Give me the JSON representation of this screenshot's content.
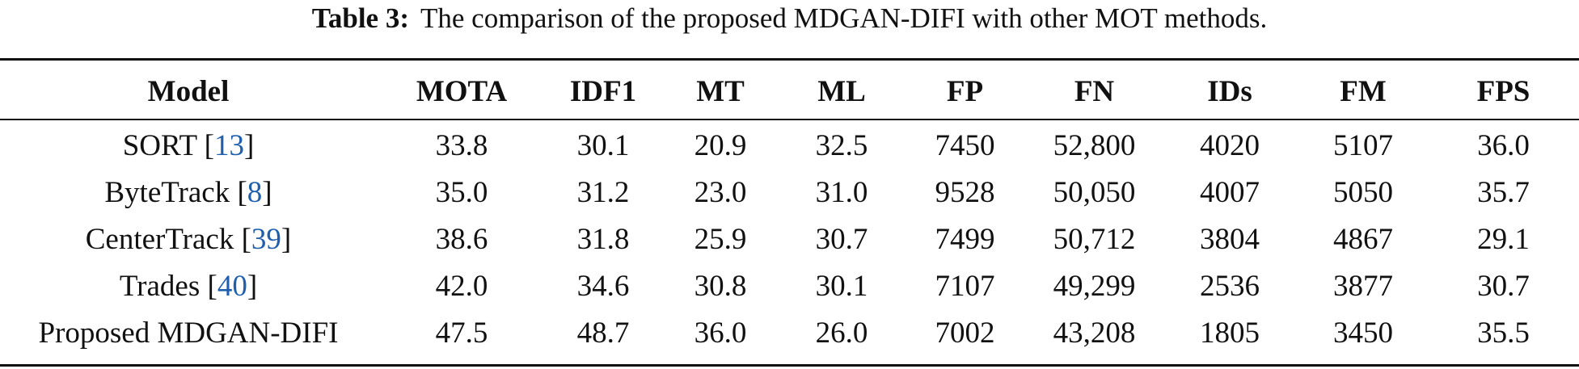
{
  "caption": {
    "label": "Table 3:",
    "text": "The comparison of the proposed MDGAN-DIFI with other MOT methods."
  },
  "table": {
    "headers": [
      "Model",
      "MOTA",
      "IDF1",
      "MT",
      "ML",
      "FP",
      "FN",
      "IDs",
      "FM",
      "FPS"
    ],
    "rows": [
      {
        "model": "SORT",
        "ref": "13",
        "values": [
          "33.8",
          "30.1",
          "20.9",
          "32.5",
          "7450",
          "52,800",
          "4020",
          "5107",
          "36.0"
        ]
      },
      {
        "model": "ByteTrack",
        "ref": "8",
        "values": [
          "35.0",
          "31.2",
          "23.0",
          "31.0",
          "9528",
          "50,050",
          "4007",
          "5050",
          "35.7"
        ]
      },
      {
        "model": "CenterTrack",
        "ref": "39",
        "values": [
          "38.6",
          "31.8",
          "25.9",
          "30.7",
          "7499",
          "50,712",
          "3804",
          "4867",
          "29.1"
        ]
      },
      {
        "model": "Trades",
        "ref": "40",
        "values": [
          "42.0",
          "34.6",
          "30.8",
          "30.1",
          "7107",
          "49,299",
          "2536",
          "3877",
          "30.7"
        ]
      },
      {
        "model": "Proposed MDGAN-DIFI",
        "ref": null,
        "values": [
          "47.5",
          "48.7",
          "36.0",
          "26.0",
          "7002",
          "43,208",
          "1805",
          "3450",
          "35.5"
        ]
      }
    ]
  },
  "colors": {
    "text": "#111111",
    "reference_link": "#1f5fae"
  }
}
